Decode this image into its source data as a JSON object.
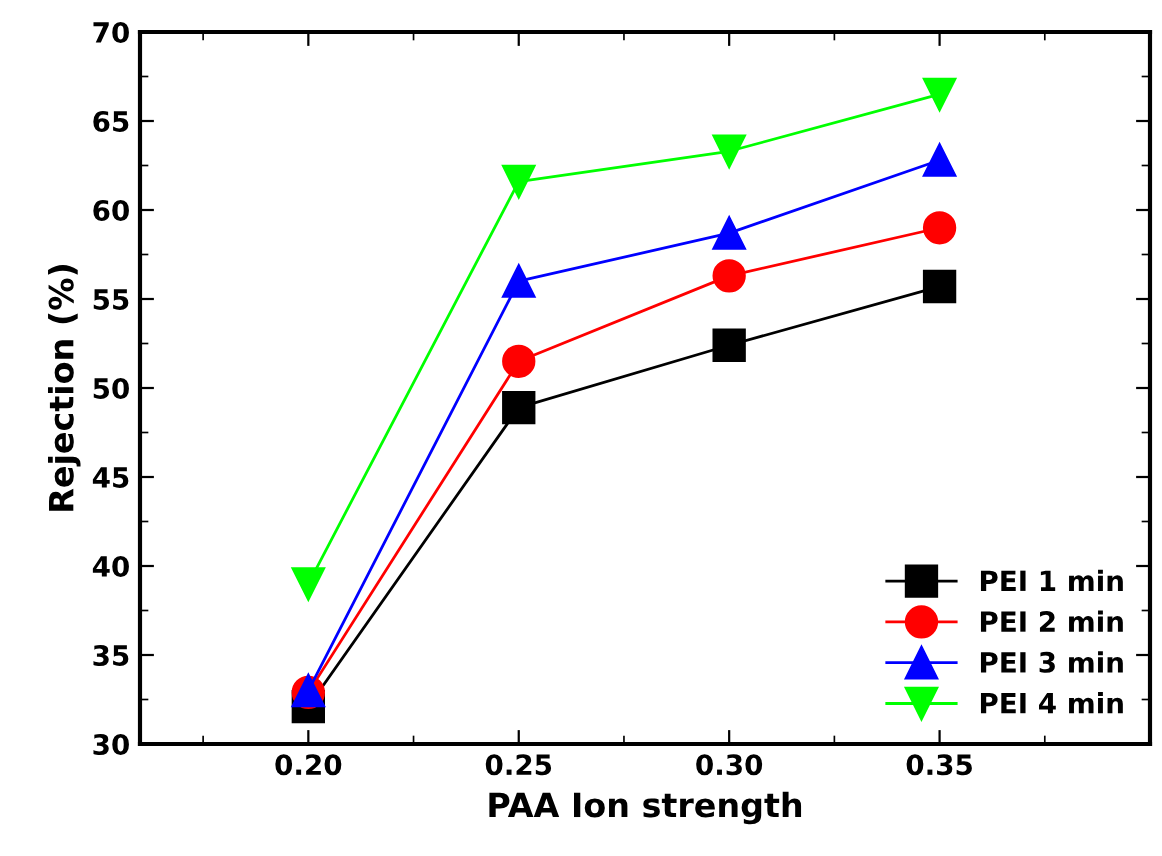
{
  "chart_data": {
    "type": "line",
    "xlabel": "PAA Ion strength",
    "ylabel": "Rejection (%)",
    "x": [
      0.2,
      0.25,
      0.3,
      0.35
    ],
    "xlim": [
      0.16,
      0.4
    ],
    "xticks": [
      {
        "value": 0.2,
        "label": "0.20"
      },
      {
        "value": 0.25,
        "label": "0.25"
      },
      {
        "value": 0.3,
        "label": "0.30"
      },
      {
        "value": 0.35,
        "label": "0.35"
      }
    ],
    "ylim": [
      30,
      70
    ],
    "yticks": [
      30,
      35,
      40,
      45,
      50,
      55,
      60,
      65,
      70
    ],
    "grid": false,
    "legend": "bottom right",
    "line_style": "solid",
    "series": [
      {
        "name": "PEI 1 min",
        "color": "#000000",
        "marker": "square",
        "values": [
          32.1,
          48.9,
          52.4,
          55.7
        ]
      },
      {
        "name": "PEI 2 min",
        "color": "#ff0000",
        "marker": "circle",
        "values": [
          32.9,
          51.5,
          56.3,
          59.0
        ]
      },
      {
        "name": "PEI 3 min",
        "color": "#0000ff",
        "marker": "triangle",
        "values": [
          33.0,
          56.0,
          58.7,
          62.8
        ]
      },
      {
        "name": "PEI 4 min",
        "color": "#00ff00",
        "marker": "triangle_down",
        "values": [
          39.0,
          61.6,
          63.3,
          66.5
        ]
      }
    ]
  }
}
